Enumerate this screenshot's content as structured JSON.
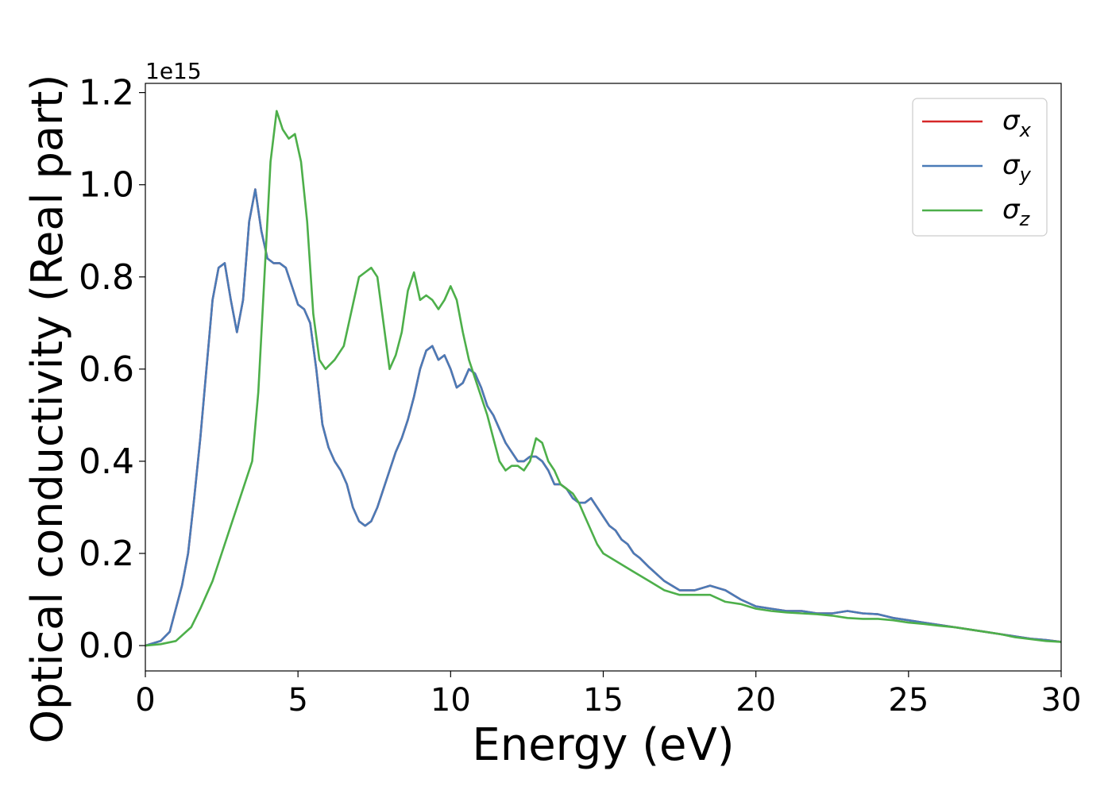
{
  "chart_data": {
    "type": "line",
    "xlabel": "Energy (eV)",
    "ylabel": "Optical conductivity (Real part)",
    "y_offset_label": "1e15",
    "xlim": [
      0,
      30
    ],
    "ylim": [
      -0.055,
      1.22
    ],
    "x_ticks": [
      0,
      5,
      10,
      15,
      20,
      25,
      30
    ],
    "x_tick_labels": [
      "0",
      "5",
      "10",
      "15",
      "20",
      "25",
      "30"
    ],
    "y_ticks": [
      0.0,
      0.2,
      0.4,
      0.6,
      0.8,
      1.0,
      1.2
    ],
    "y_tick_labels": [
      "0.0",
      "0.2",
      "0.4",
      "0.6",
      "0.8",
      "1.0",
      "1.2"
    ],
    "grid": false,
    "legend_position": "top-right",
    "series": [
      {
        "name": "σx",
        "symbol": "σ",
        "subscript": "x",
        "color": "#d62728",
        "x": [
          0,
          0.5,
          0.8,
          1.0,
          1.2,
          1.4,
          1.6,
          1.8,
          2.0,
          2.2,
          2.4,
          2.6,
          2.8,
          3.0,
          3.2,
          3.4,
          3.6,
          3.8,
          4.0,
          4.2,
          4.4,
          4.6,
          4.8,
          5.0,
          5.2,
          5.4,
          5.6,
          5.8,
          6.0,
          6.2,
          6.4,
          6.6,
          6.8,
          7.0,
          7.2,
          7.4,
          7.6,
          7.8,
          8.0,
          8.2,
          8.4,
          8.6,
          8.8,
          9.0,
          9.2,
          9.4,
          9.6,
          9.8,
          10.0,
          10.2,
          10.4,
          10.6,
          10.8,
          11.0,
          11.2,
          11.4,
          11.6,
          11.8,
          12.0,
          12.2,
          12.4,
          12.6,
          12.8,
          13.0,
          13.2,
          13.4,
          13.6,
          13.8,
          14.0,
          14.2,
          14.4,
          14.6,
          14.8,
          15.0,
          15.2,
          15.4,
          15.6,
          15.8,
          16.0,
          16.2,
          16.5,
          17.0,
          17.5,
          18.0,
          18.5,
          19.0,
          19.5,
          20.0,
          20.5,
          21.0,
          21.5,
          22.0,
          22.5,
          23.0,
          23.5,
          24.0,
          24.5,
          25.0,
          25.5,
          26.0,
          26.5,
          27.0,
          27.5,
          28.0,
          28.5,
          29.0,
          29.5,
          30.0
        ],
        "values": [
          0,
          0.01,
          0.03,
          0.08,
          0.13,
          0.2,
          0.32,
          0.45,
          0.6,
          0.75,
          0.82,
          0.83,
          0.75,
          0.68,
          0.75,
          0.92,
          0.99,
          0.9,
          0.84,
          0.83,
          0.83,
          0.82,
          0.78,
          0.74,
          0.73,
          0.7,
          0.6,
          0.48,
          0.43,
          0.4,
          0.38,
          0.35,
          0.3,
          0.27,
          0.26,
          0.27,
          0.3,
          0.34,
          0.38,
          0.42,
          0.45,
          0.49,
          0.54,
          0.6,
          0.64,
          0.65,
          0.62,
          0.63,
          0.6,
          0.56,
          0.57,
          0.6,
          0.59,
          0.56,
          0.52,
          0.5,
          0.47,
          0.44,
          0.42,
          0.4,
          0.4,
          0.41,
          0.41,
          0.4,
          0.38,
          0.35,
          0.35,
          0.34,
          0.32,
          0.31,
          0.31,
          0.32,
          0.3,
          0.28,
          0.26,
          0.25,
          0.23,
          0.22,
          0.2,
          0.19,
          0.17,
          0.14,
          0.12,
          0.12,
          0.13,
          0.12,
          0.1,
          0.085,
          0.08,
          0.075,
          0.075,
          0.07,
          0.07,
          0.075,
          0.07,
          0.068,
          0.06,
          0.055,
          0.05,
          0.045,
          0.04,
          0.035,
          0.03,
          0.025,
          0.02,
          0.015,
          0.012,
          0.008
        ]
      },
      {
        "name": "σy",
        "symbol": "σ",
        "subscript": "y",
        "color": "#4a7bb7",
        "x": [
          0,
          0.5,
          0.8,
          1.0,
          1.2,
          1.4,
          1.6,
          1.8,
          2.0,
          2.2,
          2.4,
          2.6,
          2.8,
          3.0,
          3.2,
          3.4,
          3.6,
          3.8,
          4.0,
          4.2,
          4.4,
          4.6,
          4.8,
          5.0,
          5.2,
          5.4,
          5.6,
          5.8,
          6.0,
          6.2,
          6.4,
          6.6,
          6.8,
          7.0,
          7.2,
          7.4,
          7.6,
          7.8,
          8.0,
          8.2,
          8.4,
          8.6,
          8.8,
          9.0,
          9.2,
          9.4,
          9.6,
          9.8,
          10.0,
          10.2,
          10.4,
          10.6,
          10.8,
          11.0,
          11.2,
          11.4,
          11.6,
          11.8,
          12.0,
          12.2,
          12.4,
          12.6,
          12.8,
          13.0,
          13.2,
          13.4,
          13.6,
          13.8,
          14.0,
          14.2,
          14.4,
          14.6,
          14.8,
          15.0,
          15.2,
          15.4,
          15.6,
          15.8,
          16.0,
          16.2,
          16.5,
          17.0,
          17.5,
          18.0,
          18.5,
          19.0,
          19.5,
          20.0,
          20.5,
          21.0,
          21.5,
          22.0,
          22.5,
          23.0,
          23.5,
          24.0,
          24.5,
          25.0,
          25.5,
          26.0,
          26.5,
          27.0,
          27.5,
          28.0,
          28.5,
          29.0,
          29.5,
          30.0
        ],
        "values": [
          0,
          0.01,
          0.03,
          0.08,
          0.13,
          0.2,
          0.32,
          0.45,
          0.6,
          0.75,
          0.82,
          0.83,
          0.75,
          0.68,
          0.75,
          0.92,
          0.99,
          0.9,
          0.84,
          0.83,
          0.83,
          0.82,
          0.78,
          0.74,
          0.73,
          0.7,
          0.6,
          0.48,
          0.43,
          0.4,
          0.38,
          0.35,
          0.3,
          0.27,
          0.26,
          0.27,
          0.3,
          0.34,
          0.38,
          0.42,
          0.45,
          0.49,
          0.54,
          0.6,
          0.64,
          0.65,
          0.62,
          0.63,
          0.6,
          0.56,
          0.57,
          0.6,
          0.59,
          0.56,
          0.52,
          0.5,
          0.47,
          0.44,
          0.42,
          0.4,
          0.4,
          0.41,
          0.41,
          0.4,
          0.38,
          0.35,
          0.35,
          0.34,
          0.32,
          0.31,
          0.31,
          0.32,
          0.3,
          0.28,
          0.26,
          0.25,
          0.23,
          0.22,
          0.2,
          0.19,
          0.17,
          0.14,
          0.12,
          0.12,
          0.13,
          0.12,
          0.1,
          0.085,
          0.08,
          0.075,
          0.075,
          0.07,
          0.07,
          0.075,
          0.07,
          0.068,
          0.06,
          0.055,
          0.05,
          0.045,
          0.04,
          0.035,
          0.03,
          0.025,
          0.02,
          0.015,
          0.012,
          0.008
        ]
      },
      {
        "name": "σz",
        "symbol": "σ",
        "subscript": "z",
        "color": "#4daf4a",
        "x": [
          0,
          0.5,
          1.0,
          1.5,
          1.8,
          2.0,
          2.2,
          2.5,
          2.8,
          3.0,
          3.2,
          3.5,
          3.7,
          3.9,
          4.1,
          4.3,
          4.5,
          4.7,
          4.9,
          5.1,
          5.3,
          5.5,
          5.7,
          5.9,
          6.2,
          6.5,
          6.8,
          7.0,
          7.2,
          7.4,
          7.6,
          7.8,
          8.0,
          8.2,
          8.4,
          8.6,
          8.8,
          9.0,
          9.2,
          9.4,
          9.6,
          9.8,
          10.0,
          10.2,
          10.4,
          10.6,
          10.8,
          11.0,
          11.2,
          11.4,
          11.6,
          11.8,
          12.0,
          12.2,
          12.4,
          12.6,
          12.8,
          13.0,
          13.2,
          13.4,
          13.6,
          13.8,
          14.0,
          14.2,
          14.4,
          14.6,
          14.8,
          15.0,
          15.5,
          16.0,
          16.5,
          17.0,
          17.5,
          18.0,
          18.5,
          19.0,
          19.5,
          20.0,
          20.5,
          21.0,
          21.5,
          22.0,
          22.5,
          23.0,
          23.5,
          24.0,
          24.5,
          25.0,
          25.5,
          26.0,
          26.5,
          27.0,
          27.5,
          28.0,
          28.5,
          29.0,
          29.5,
          30.0
        ],
        "values": [
          0,
          0.003,
          0.01,
          0.04,
          0.08,
          0.11,
          0.14,
          0.2,
          0.26,
          0.3,
          0.34,
          0.4,
          0.55,
          0.8,
          1.05,
          1.16,
          1.12,
          1.1,
          1.11,
          1.05,
          0.92,
          0.72,
          0.62,
          0.6,
          0.62,
          0.65,
          0.74,
          0.8,
          0.81,
          0.82,
          0.8,
          0.7,
          0.6,
          0.63,
          0.68,
          0.77,
          0.81,
          0.75,
          0.76,
          0.75,
          0.73,
          0.75,
          0.78,
          0.75,
          0.68,
          0.62,
          0.58,
          0.54,
          0.5,
          0.45,
          0.4,
          0.38,
          0.39,
          0.39,
          0.38,
          0.4,
          0.45,
          0.44,
          0.4,
          0.38,
          0.35,
          0.34,
          0.33,
          0.31,
          0.28,
          0.25,
          0.22,
          0.2,
          0.18,
          0.16,
          0.14,
          0.12,
          0.11,
          0.11,
          0.11,
          0.095,
          0.09,
          0.08,
          0.075,
          0.072,
          0.07,
          0.068,
          0.065,
          0.06,
          0.058,
          0.058,
          0.055,
          0.05,
          0.047,
          0.043,
          0.04,
          0.035,
          0.03,
          0.025,
          0.018,
          0.014,
          0.01,
          0.008
        ]
      }
    ]
  }
}
